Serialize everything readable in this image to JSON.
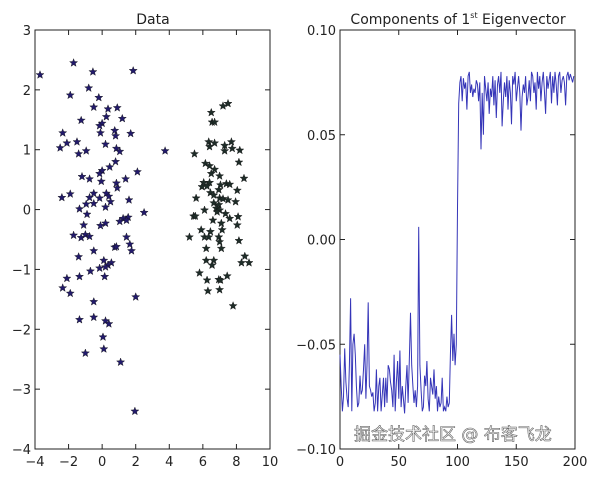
{
  "watermark": "掘金技术社区 @ 布客飞龙",
  "chart_data": [
    {
      "type": "scatter",
      "title": "Data",
      "xlim": [
        -4,
        10
      ],
      "ylim": [
        -4,
        3
      ],
      "xticks": [
        "-4",
        "-2",
        "0",
        "2",
        "4",
        "6",
        "8",
        "10"
      ],
      "yticks": [
        "-4",
        "-3",
        "-2",
        "-1",
        "0",
        "1",
        "2",
        "3"
      ],
      "xtick_values": [
        -4,
        -2,
        0,
        2,
        4,
        6,
        8,
        10
      ],
      "ytick_values": [
        -4,
        -3,
        -2,
        -1,
        0,
        1,
        2,
        3
      ],
      "grid": false,
      "marker": "star",
      "series": [
        {
          "color": "#221a6b",
          "points": [
            [
              -3.7,
              2.25
            ],
            [
              -1.7,
              2.45
            ],
            [
              -0.55,
              2.3
            ],
            [
              1.85,
              2.32
            ],
            [
              -0.8,
              2.03
            ],
            [
              -1.9,
              1.91
            ],
            [
              -0.2,
              1.87
            ],
            [
              -0.5,
              1.71
            ],
            [
              0.35,
              1.68
            ],
            [
              0.9,
              1.7
            ],
            [
              0.25,
              1.55
            ],
            [
              1.2,
              1.52
            ],
            [
              -1.25,
              1.49
            ],
            [
              0,
              1.44
            ],
            [
              -0.15,
              1.4
            ],
            [
              0.75,
              1.32
            ],
            [
              -2.35,
              1.28
            ],
            [
              -0.1,
              1.28
            ],
            [
              1.7,
              1.27
            ],
            [
              0.8,
              1.23
            ],
            [
              -1.5,
              1.13
            ],
            [
              -2.1,
              1.11
            ],
            [
              0.2,
              1.09
            ],
            [
              -2.5,
              1.03
            ],
            [
              0.85,
              1.02
            ],
            [
              1.05,
              0.97
            ],
            [
              -0.95,
              0.98
            ],
            [
              -1.4,
              0.93
            ],
            [
              3.75,
              0.98
            ],
            [
              0.8,
              0.8
            ],
            [
              0.45,
              0.71
            ],
            [
              2.1,
              0.63
            ],
            [
              0,
              0.65
            ],
            [
              -0.15,
              0.6
            ],
            [
              -1.2,
              0.55
            ],
            [
              1.4,
              0.51
            ],
            [
              -0.75,
              0.51
            ],
            [
              -0.05,
              0.47
            ],
            [
              0.85,
              0.44
            ],
            [
              0.9,
              0.36
            ],
            [
              -1.9,
              0.26
            ],
            [
              -0.5,
              0.27
            ],
            [
              0.25,
              0.27
            ],
            [
              -2.4,
              0.2
            ],
            [
              -0.75,
              0.2
            ],
            [
              -0.15,
              0.19
            ],
            [
              0.4,
              0.22
            ],
            [
              1.6,
              0.16
            ],
            [
              0.5,
              0.13
            ],
            [
              -0.95,
              0.09
            ],
            [
              -0.5,
              0.1
            ],
            [
              0.2,
              0.04
            ],
            [
              -1.35,
              0.01
            ],
            [
              2.5,
              -0.05
            ],
            [
              -0.9,
              -0.08
            ],
            [
              1.25,
              -0.15
            ],
            [
              1.55,
              -0.13
            ],
            [
              1.45,
              -0.18
            ],
            [
              1.05,
              -0.2
            ],
            [
              0.2,
              -0.23
            ],
            [
              -0.1,
              -0.27
            ],
            [
              -1.1,
              -0.26
            ],
            [
              -1.7,
              -0.43
            ],
            [
              -1.25,
              -0.47
            ],
            [
              -1.0,
              -0.42
            ],
            [
              -0.75,
              -0.45
            ],
            [
              1.45,
              -0.46
            ],
            [
              1.65,
              -0.58
            ],
            [
              0.75,
              -0.63
            ],
            [
              0.85,
              -0.62
            ],
            [
              1.75,
              -0.69
            ],
            [
              -0.5,
              -0.69
            ],
            [
              -1.4,
              -0.79
            ],
            [
              0.1,
              -0.85
            ],
            [
              0.55,
              -0.89
            ],
            [
              0.35,
              -0.93
            ],
            [
              -0.15,
              -0.98
            ],
            [
              0.2,
              -0.96
            ],
            [
              -0.7,
              -1.03
            ],
            [
              -1.35,
              -1.12
            ],
            [
              0.15,
              -1.12
            ],
            [
              -2.1,
              -1.15
            ],
            [
              -2.35,
              -1.31
            ],
            [
              -1.9,
              -1.4
            ],
            [
              2.0,
              -1.46
            ],
            [
              -0.5,
              -1.54
            ],
            [
              -1.35,
              -1.84
            ],
            [
              -0.5,
              -1.8
            ],
            [
              0.2,
              -1.86
            ],
            [
              0.4,
              -1.91
            ],
            [
              0.05,
              -2.13
            ],
            [
              0.1,
              -2.33
            ],
            [
              -1.0,
              -2.4
            ],
            [
              1.1,
              -2.55
            ],
            [
              1.95,
              -3.37
            ]
          ]
        },
        {
          "color": "#1e2c28",
          "points": [
            [
              7.5,
              1.77
            ],
            [
              7.2,
              1.73
            ],
            [
              6.5,
              1.62
            ],
            [
              6.55,
              1.46
            ],
            [
              6.7,
              1.46
            ],
            [
              6.35,
              1.13
            ],
            [
              6.4,
              1.05
            ],
            [
              6.7,
              1.11
            ],
            [
              7.3,
              1.07
            ],
            [
              7.7,
              1.13
            ],
            [
              7.75,
              1.02
            ],
            [
              8.2,
              0.99
            ],
            [
              7.3,
              0.98
            ],
            [
              5.5,
              0.93
            ],
            [
              8.15,
              0.79
            ],
            [
              6.15,
              0.77
            ],
            [
              6.4,
              0.73
            ],
            [
              6.7,
              0.67
            ],
            [
              6.5,
              0.6
            ],
            [
              7.0,
              0.56
            ],
            [
              8.45,
              0.52
            ],
            [
              6.05,
              0.45
            ],
            [
              6.4,
              0.45
            ],
            [
              7.4,
              0.43
            ],
            [
              7.6,
              0.42
            ],
            [
              7.05,
              0.41
            ],
            [
              5.95,
              0.38
            ],
            [
              6.25,
              0.39
            ],
            [
              8.05,
              0.32
            ],
            [
              6.95,
              0.33
            ],
            [
              6.45,
              0.28
            ],
            [
              6.65,
              0.24
            ],
            [
              5.6,
              0.19
            ],
            [
              7.0,
              0.19
            ],
            [
              7.2,
              0.18
            ],
            [
              7.5,
              0.16
            ],
            [
              7.95,
              0.13
            ],
            [
              6.65,
              0.11
            ],
            [
              6.95,
              0.08
            ],
            [
              6.8,
              0.02
            ],
            [
              7.0,
              -0.01
            ],
            [
              6.1,
              -0.01
            ],
            [
              6.85,
              -0.04
            ],
            [
              7.35,
              -0.07
            ],
            [
              5.45,
              -0.11
            ],
            [
              5.55,
              -0.11
            ],
            [
              8.1,
              -0.12
            ],
            [
              7.6,
              -0.15
            ],
            [
              6.6,
              -0.18
            ],
            [
              7.1,
              -0.23
            ],
            [
              8.05,
              -0.26
            ],
            [
              5.9,
              -0.34
            ],
            [
              7.15,
              -0.34
            ],
            [
              6.45,
              -0.37
            ],
            [
              5.2,
              -0.46
            ],
            [
              6.1,
              -0.46
            ],
            [
              6.35,
              -0.46
            ],
            [
              6.95,
              -0.46
            ],
            [
              8.15,
              -0.52
            ],
            [
              7.0,
              -0.54
            ],
            [
              7.1,
              -0.65
            ],
            [
              6.2,
              -0.65
            ],
            [
              8.5,
              -0.78
            ],
            [
              8.3,
              -0.89
            ],
            [
              8.75,
              -0.89
            ],
            [
              6.2,
              -0.85
            ],
            [
              6.65,
              -0.85
            ],
            [
              6.55,
              -0.93
            ],
            [
              5.8,
              -1.06
            ],
            [
              7.45,
              -1.11
            ],
            [
              6.95,
              -1.17
            ],
            [
              6.25,
              -1.18
            ],
            [
              7.05,
              -1.18
            ],
            [
              6.3,
              -1.36
            ],
            [
              7.0,
              -1.34
            ],
            [
              7.8,
              -1.61
            ]
          ]
        }
      ]
    },
    {
      "type": "line",
      "title_parts": [
        "Components of 1",
        "st",
        " Eigenvector"
      ],
      "xlim": [
        0,
        200
      ],
      "ylim": [
        -0.1,
        0.1
      ],
      "xticks": [
        "0",
        "50",
        "100",
        "150",
        "200"
      ],
      "yticks": [
        "-0.10",
        "-0.05",
        "0.00",
        "0.05",
        "0.10"
      ],
      "xtick_values": [
        0,
        50,
        100,
        150,
        200
      ],
      "ytick_values": [
        -0.1,
        -0.05,
        0.0,
        0.05,
        0.1
      ],
      "grid": false,
      "color": "#3535b8",
      "values": [
        -0.055,
        -0.07,
        -0.082,
        -0.075,
        -0.052,
        -0.068,
        -0.076,
        -0.08,
        -0.06,
        -0.028,
        -0.082,
        -0.05,
        -0.045,
        -0.055,
        -0.07,
        -0.08,
        -0.078,
        -0.065,
        -0.074,
        -0.072,
        -0.062,
        -0.05,
        -0.076,
        -0.06,
        -0.03,
        -0.07,
        -0.072,
        -0.075,
        -0.073,
        -0.082,
        -0.078,
        -0.062,
        -0.082,
        -0.07,
        -0.066,
        -0.082,
        -0.074,
        -0.066,
        -0.08,
        -0.066,
        -0.078,
        -0.06,
        -0.062,
        -0.068,
        -0.072,
        -0.08,
        -0.055,
        -0.082,
        -0.068,
        -0.058,
        -0.076,
        -0.053,
        -0.08,
        -0.07,
        -0.076,
        -0.083,
        -0.07,
        -0.06,
        -0.078,
        -0.058,
        -0.035,
        -0.06,
        -0.07,
        -0.078,
        -0.072,
        -0.08,
        -0.07,
        0.006,
        -0.06,
        -0.072,
        -0.082,
        -0.08,
        -0.065,
        -0.07,
        -0.058,
        -0.076,
        -0.082,
        -0.066,
        -0.07,
        -0.074,
        -0.062,
        -0.076,
        -0.07,
        -0.082,
        -0.075,
        -0.08,
        -0.078,
        -0.066,
        -0.082,
        -0.08,
        -0.082,
        -0.075,
        -0.08,
        -0.078,
        -0.055,
        -0.036,
        -0.058,
        -0.045,
        -0.06,
        -0.05,
        0.015,
        0.065,
        0.075,
        0.078,
        0.066,
        0.077,
        0.072,
        0.075,
        0.062,
        0.078,
        0.08,
        0.07,
        0.074,
        0.068,
        0.072,
        0.07,
        0.076,
        0.074,
        0.066,
        0.075,
        0.043,
        0.07,
        0.05,
        0.078,
        0.072,
        0.066,
        0.075,
        0.06,
        0.072,
        0.068,
        0.078,
        0.064,
        0.076,
        0.058,
        0.074,
        0.078,
        0.07,
        0.08,
        0.054,
        0.066,
        0.075,
        0.068,
        0.078,
        0.062,
        0.076,
        0.07,
        0.055,
        0.078,
        0.074,
        0.08,
        0.066,
        0.072,
        0.078,
        0.07,
        0.052,
        0.068,
        0.074,
        0.07,
        0.078,
        0.064,
        0.068,
        0.076,
        0.066,
        0.08,
        0.078,
        0.07,
        0.075,
        0.062,
        0.08,
        0.072,
        0.078,
        0.066,
        0.075,
        0.08,
        0.07,
        0.06,
        0.078,
        0.072,
        0.076,
        0.08,
        0.065,
        0.078,
        0.07,
        0.08,
        0.074,
        0.064,
        0.078,
        0.08,
        0.07,
        0.076,
        0.078,
        0.075,
        0.064,
        0.078,
        0.08,
        0.076,
        0.079,
        0.077,
        0.075,
        0.078
      ]
    }
  ]
}
